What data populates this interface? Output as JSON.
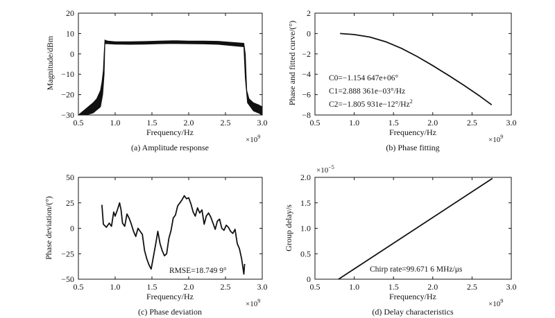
{
  "figure": {
    "background": "#ffffff",
    "line_color": "#111111"
  },
  "chart_data": [
    {
      "id": "a",
      "type": "area",
      "caption": "(a) Amplitude response",
      "xlabel": "Frequency/Hz",
      "ylabel": "Magnitude/dBm",
      "x_multiplier": "×10",
      "x_multiplier_exp": "9",
      "xlim": [
        0.5,
        3.0
      ],
      "ylim": [
        -30,
        20
      ],
      "xticks": [
        0.5,
        1.0,
        1.5,
        2.0,
        2.5,
        3.0
      ],
      "xtick_labels": [
        "0.5",
        "1.0",
        "1.5",
        "2.0",
        "2.5",
        "3.0"
      ],
      "yticks": [
        -30,
        -20,
        -10,
        0,
        10,
        20
      ],
      "ytick_labels": [
        "−30",
        "−20",
        "−10",
        "0",
        "10",
        "20"
      ],
      "series": [
        {
          "upper": [
            [
              0.5,
              -30
            ],
            [
              0.55,
              -28.5
            ],
            [
              0.6,
              -27
            ],
            [
              0.65,
              -25.5
            ],
            [
              0.7,
              -24
            ],
            [
              0.75,
              -22
            ],
            [
              0.8,
              -18
            ],
            [
              0.82,
              -14
            ],
            [
              0.84,
              -8
            ],
            [
              0.85,
              0
            ],
            [
              0.86,
              6.8
            ],
            [
              0.9,
              6.3
            ],
            [
              1.0,
              6.0
            ],
            [
              1.2,
              6.0
            ],
            [
              1.4,
              6.1
            ],
            [
              1.6,
              6.3
            ],
            [
              1.8,
              6.5
            ],
            [
              2.0,
              6.3
            ],
            [
              2.2,
              6.3
            ],
            [
              2.4,
              6.2
            ],
            [
              2.6,
              5.6
            ],
            [
              2.75,
              5.2
            ],
            [
              2.77,
              0
            ],
            [
              2.78,
              -10
            ],
            [
              2.79,
              -18
            ],
            [
              2.82,
              -22
            ],
            [
              2.88,
              -24
            ],
            [
              2.95,
              -25
            ],
            [
              3.0,
              -26
            ]
          ],
          "lower": [
            [
              0.5,
              -30
            ],
            [
              0.6,
              -30
            ],
            [
              0.7,
              -29
            ],
            [
              0.8,
              -26
            ],
            [
              0.83,
              -20
            ],
            [
              0.85,
              -10
            ],
            [
              0.86,
              5.0
            ],
            [
              0.9,
              5.0
            ],
            [
              1.0,
              4.8
            ],
            [
              1.2,
              4.7
            ],
            [
              1.4,
              4.8
            ],
            [
              1.6,
              5.0
            ],
            [
              1.8,
              5.1
            ],
            [
              2.0,
              5.0
            ],
            [
              2.2,
              4.9
            ],
            [
              2.4,
              4.7
            ],
            [
              2.6,
              4.0
            ],
            [
              2.75,
              3.5
            ],
            [
              2.77,
              -12
            ],
            [
              2.8,
              -24
            ],
            [
              2.88,
              -28
            ],
            [
              2.95,
              -29
            ],
            [
              3.0,
              -30
            ]
          ]
        }
      ]
    },
    {
      "id": "b",
      "type": "line",
      "caption": "(b) Phase fitting",
      "xlabel": "Frequency/Hz",
      "ylabel": "Phase and fitted curve/(°)",
      "x_multiplier": "×10",
      "x_multiplier_exp": "9",
      "xlim": [
        0.5,
        3.0
      ],
      "ylim": [
        -8,
        2
      ],
      "xticks": [
        0.5,
        1.0,
        1.5,
        2.0,
        2.5,
        3.0
      ],
      "xtick_labels": [
        "0.5",
        "1.0",
        "1.5",
        "2.0",
        "2.5",
        "3.0"
      ],
      "yticks": [
        -8,
        -6,
        -4,
        -2,
        0,
        2
      ],
      "ytick_labels": [
        "−8",
        "−6",
        "−4",
        "−2",
        "0",
        "2"
      ],
      "series": [
        {
          "x": [
            0.82,
            1.0,
            1.2,
            1.4,
            1.6,
            1.8,
            2.0,
            2.2,
            2.4,
            2.6,
            2.75
          ],
          "y": [
            0.0,
            -0.1,
            -0.35,
            -0.8,
            -1.45,
            -2.25,
            -3.15,
            -4.1,
            -5.1,
            -6.15,
            -7.0
          ]
        }
      ],
      "annotations": [
        {
          "text": "C0=−1.154 647e+06°"
        },
        {
          "text": "C1=2.888 361e−03°/Hz"
        },
        {
          "text": "C2=−1.805 931e−12°/Hz",
          "sup": "2"
        }
      ]
    },
    {
      "id": "c",
      "type": "line",
      "caption": "(c) Phase deviation",
      "xlabel": "Frequency/Hz",
      "ylabel": "Phase deviation/(°)",
      "x_multiplier": "×10",
      "x_multiplier_exp": "9",
      "xlim": [
        0.5,
        3.0
      ],
      "ylim": [
        -50,
        50
      ],
      "xticks": [
        0.5,
        1.0,
        1.5,
        2.0,
        2.5,
        3.0
      ],
      "xtick_labels": [
        "0.5",
        "1.0",
        "1.5",
        "2.0",
        "2.5",
        "3.0"
      ],
      "yticks": [
        -50,
        -25,
        0,
        25,
        50
      ],
      "ytick_labels": [
        "−50",
        "−25",
        "0",
        "25",
        "50"
      ],
      "series": [
        {
          "x": [
            0.82,
            0.84,
            0.88,
            0.92,
            0.95,
            0.98,
            1.0,
            1.03,
            1.06,
            1.08,
            1.1,
            1.13,
            1.16,
            1.19,
            1.22,
            1.25,
            1.28,
            1.31,
            1.34,
            1.37,
            1.4,
            1.43,
            1.46,
            1.49,
            1.52,
            1.55,
            1.58,
            1.61,
            1.64,
            1.67,
            1.7,
            1.73,
            1.76,
            1.79,
            1.82,
            1.85,
            1.88,
            1.91,
            1.94,
            1.97,
            2.0,
            2.03,
            2.06,
            2.09,
            2.12,
            2.15,
            2.18,
            2.21,
            2.24,
            2.27,
            2.3,
            2.33,
            2.36,
            2.39,
            2.42,
            2.45,
            2.48,
            2.51,
            2.54,
            2.57,
            2.6,
            2.63,
            2.66,
            2.69,
            2.72,
            2.75,
            2.76
          ],
          "y": [
            23,
            4,
            1,
            5,
            2,
            16,
            12,
            18,
            25,
            18,
            5,
            2,
            14,
            10,
            4,
            -3,
            -8,
            0,
            -3,
            -6,
            -22,
            -30,
            -36,
            -40,
            -28,
            -16,
            -3,
            -15,
            -22,
            -27,
            -25,
            -10,
            -2,
            10,
            13,
            22,
            25,
            28,
            32,
            29,
            30,
            24,
            16,
            12,
            20,
            15,
            18,
            4,
            12,
            15,
            11,
            5,
            -1,
            7,
            9,
            0,
            -2,
            3,
            1,
            -3,
            -5,
            -1,
            -15,
            -20,
            -30,
            -45,
            -35
          ]
        }
      ],
      "annotations": [
        {
          "text": "RMSE=18.749 9°"
        }
      ]
    },
    {
      "id": "d",
      "type": "line",
      "caption": "(d) Delay characteristics",
      "xlabel": "Frequency/Hz",
      "ylabel": "Group delay/s",
      "x_multiplier": "×10",
      "x_multiplier_exp": "9",
      "y_multiplier": "×10",
      "y_multiplier_exp": "−5",
      "xlim": [
        0.5,
        3.0
      ],
      "ylim": [
        0,
        2.0
      ],
      "xticks": [
        0.5,
        1.0,
        1.5,
        2.0,
        2.5,
        3.0
      ],
      "xtick_labels": [
        "0.5",
        "1.0",
        "1.5",
        "2.0",
        "2.5",
        "3.0"
      ],
      "yticks": [
        0,
        0.5,
        1.0,
        1.5,
        2.0
      ],
      "ytick_labels": [
        "0",
        "0.5",
        "1.0",
        "1.5",
        "2.0"
      ],
      "series": [
        {
          "x": [
            0.8,
            2.76
          ],
          "y": [
            0.0,
            1.98
          ]
        }
      ],
      "annotations": [
        {
          "text": "Chirp rate=99.671 6 MHz/μs"
        }
      ]
    }
  ]
}
